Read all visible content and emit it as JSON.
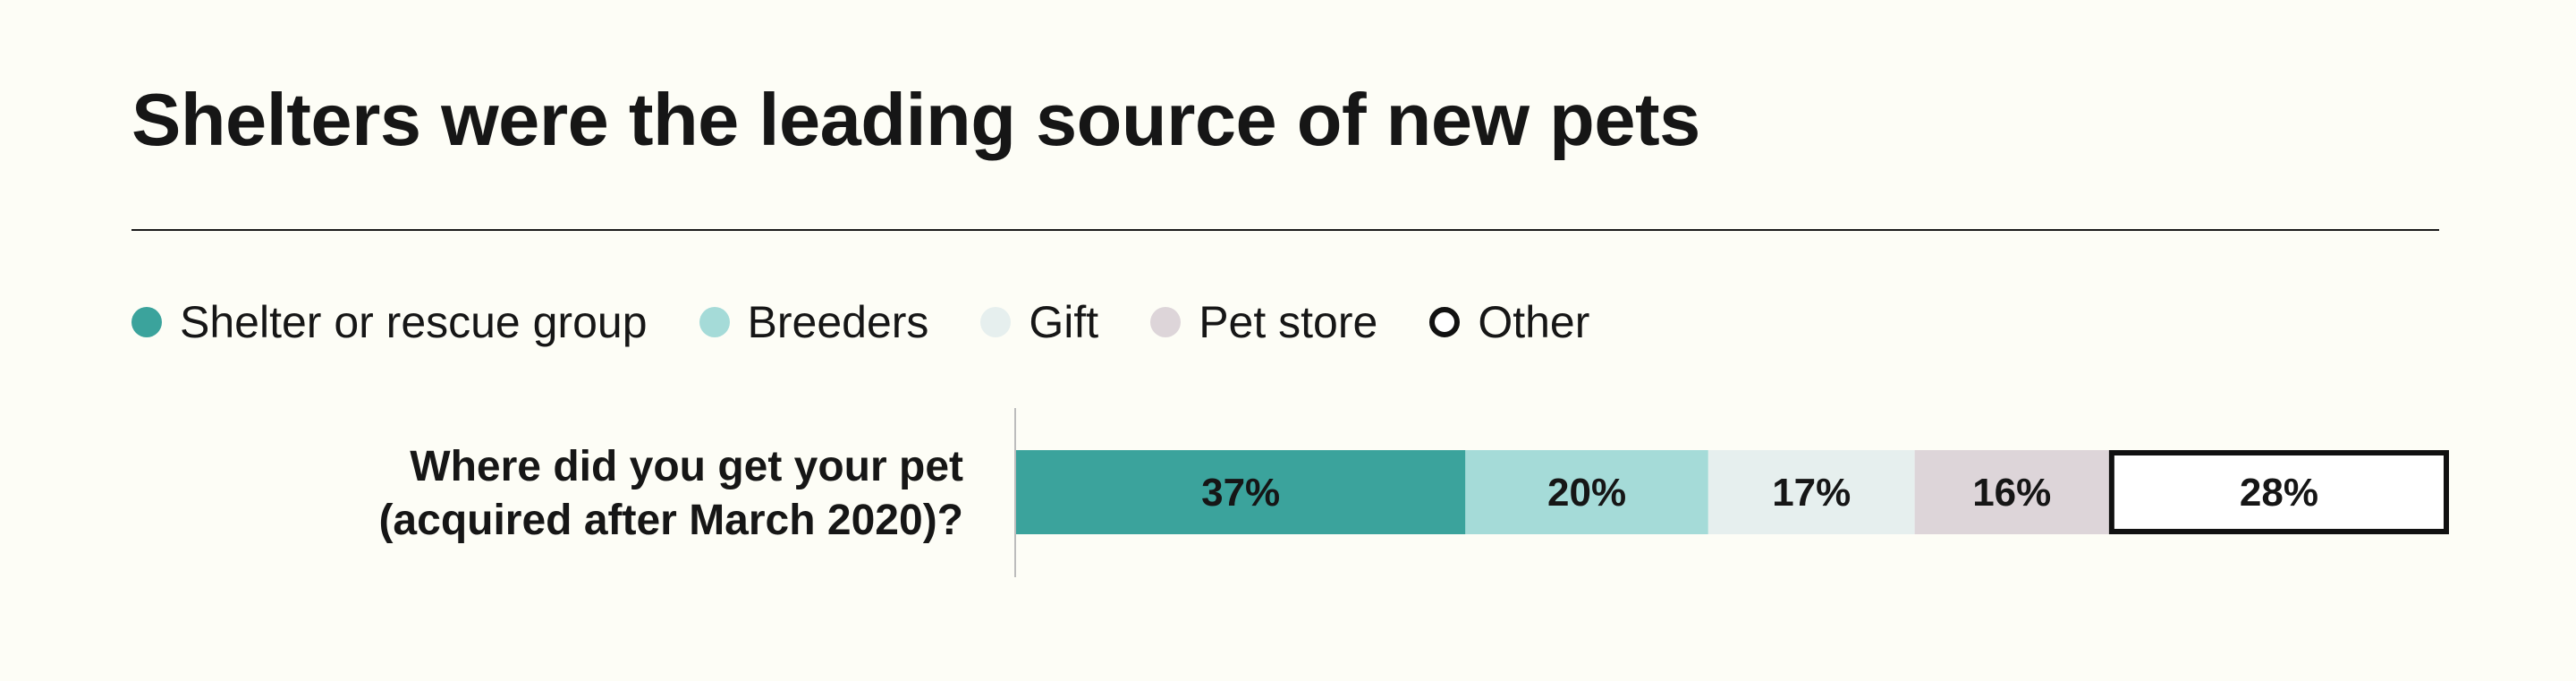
{
  "title": "Shelters were the leading source of new pets",
  "legend": [
    {
      "label": "Shelter or rescue group",
      "color": "#3ba39c",
      "outline": false
    },
    {
      "label": "Breeders",
      "color": "#a5dbd8",
      "outline": false
    },
    {
      "label": "Gift",
      "color": "#e6efee",
      "outline": false
    },
    {
      "label": "Pet store",
      "color": "#ddd5d9",
      "outline": false
    },
    {
      "label": "Other",
      "color": "#ffffff",
      "outline": true
    }
  ],
  "row_label": {
    "line1": "Where did you get your pet",
    "line2": "(acquired after March 2020)?"
  },
  "chart_data": {
    "type": "bar",
    "orientation": "horizontal",
    "stacked": true,
    "categories": [
      "Where did you get your pet (acquired after March 2020)?"
    ],
    "series": [
      {
        "name": "Shelter or rescue group",
        "values": [
          37
        ],
        "label": "37%",
        "color": "#3ba39c"
      },
      {
        "name": "Breeders",
        "values": [
          20
        ],
        "label": "20%",
        "color": "#a5dbd8"
      },
      {
        "name": "Gift",
        "values": [
          17
        ],
        "label": "17%",
        "color": "#e6efee"
      },
      {
        "name": "Pet store",
        "values": [
          16
        ],
        "label": "16%",
        "color": "#ddd5d9"
      },
      {
        "name": "Other",
        "values": [
          28
        ],
        "label": "28%",
        "color": "#ffffff",
        "outline": "#111111"
      }
    ],
    "title": "Shelters were the leading source of new pets",
    "xlabel": "",
    "ylabel": "",
    "grid": false,
    "legend_position": "top-left"
  }
}
